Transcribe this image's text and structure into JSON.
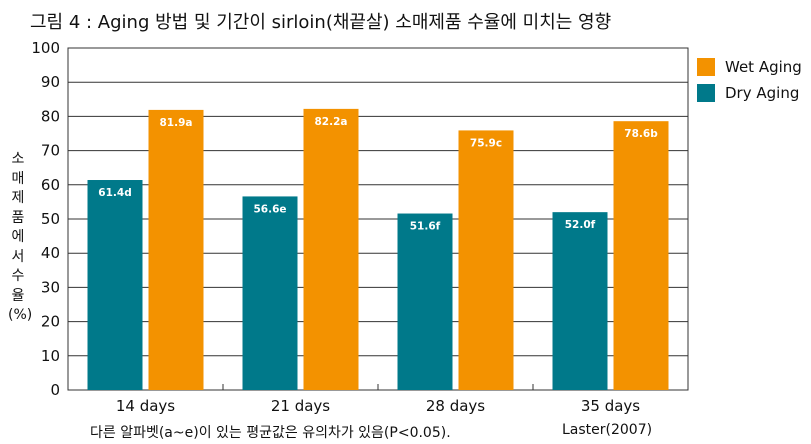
{
  "chart_data": {
    "type": "bar",
    "title": "그림 4 : Aging 방법 및 기간이 sirloin(채끝살) 소매제품 수율에 미치는 영향",
    "xlabel": "",
    "ylabel": "소매제품에서수율(%)",
    "ylim": [
      0,
      100
    ],
    "yticks": [
      "0",
      "10",
      "20",
      "30",
      "40",
      "50",
      "60",
      "70",
      "80",
      "90",
      "100"
    ],
    "categories": [
      "14 days",
      "21 days",
      "28 days",
      "35 days"
    ],
    "series": [
      {
        "name": "Dry Aging",
        "color": "#00798a",
        "values": [
          61.4,
          56.6,
          51.6,
          52.0
        ],
        "labels": [
          "61.4d",
          "56.6e",
          "51.6f",
          "52.0f"
        ]
      },
      {
        "name": "Wet Aging",
        "color": "#f39200",
        "values": [
          81.9,
          82.2,
          75.9,
          78.6
        ],
        "labels": [
          "81.9a",
          "82.2a",
          "75.9c",
          "78.6b"
        ]
      }
    ],
    "legend_order": [
      "Wet Aging",
      "Dry Aging"
    ],
    "legend_position": "right",
    "footnote": "다른 알파벳(a~e)이 있는 평균값은 유의차가 있음(P<0.05).",
    "source": "Laster(2007)"
  }
}
